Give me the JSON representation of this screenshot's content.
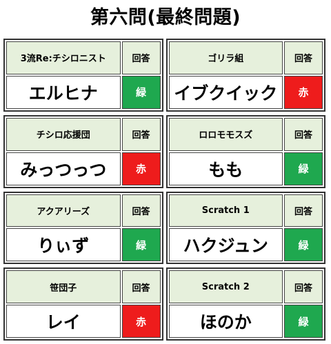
{
  "title": "第六問(最終問題)",
  "answer_header": "回答",
  "colors": {
    "header_bg": "#e6f0dc",
    "green": "#1fa84f",
    "red": "#ee1c1c"
  },
  "teams": [
    {
      "name": "3流Re:チシロニスト",
      "answer": "エルヒナ",
      "result": "緑",
      "result_color": "green"
    },
    {
      "name": "ゴリラ組",
      "answer": "イブクイック",
      "result": "赤",
      "result_color": "red"
    },
    {
      "name": "チシロ応援団",
      "answer": "みっつっつ",
      "result": "赤",
      "result_color": "red"
    },
    {
      "name": "ロロモモスズ",
      "answer": "もも",
      "result": "緑",
      "result_color": "green"
    },
    {
      "name": "アクアリーズ",
      "answer": "りぃず",
      "result": "緑",
      "result_color": "green"
    },
    {
      "name": "Scratch 1",
      "answer": "ハクジュン",
      "result": "緑",
      "result_color": "green"
    },
    {
      "name": "笹団子",
      "answer": "レイ",
      "result": "赤",
      "result_color": "red"
    },
    {
      "name": "Scratch 2",
      "answer": "ほのか",
      "result": "緑",
      "result_color": "green"
    }
  ]
}
